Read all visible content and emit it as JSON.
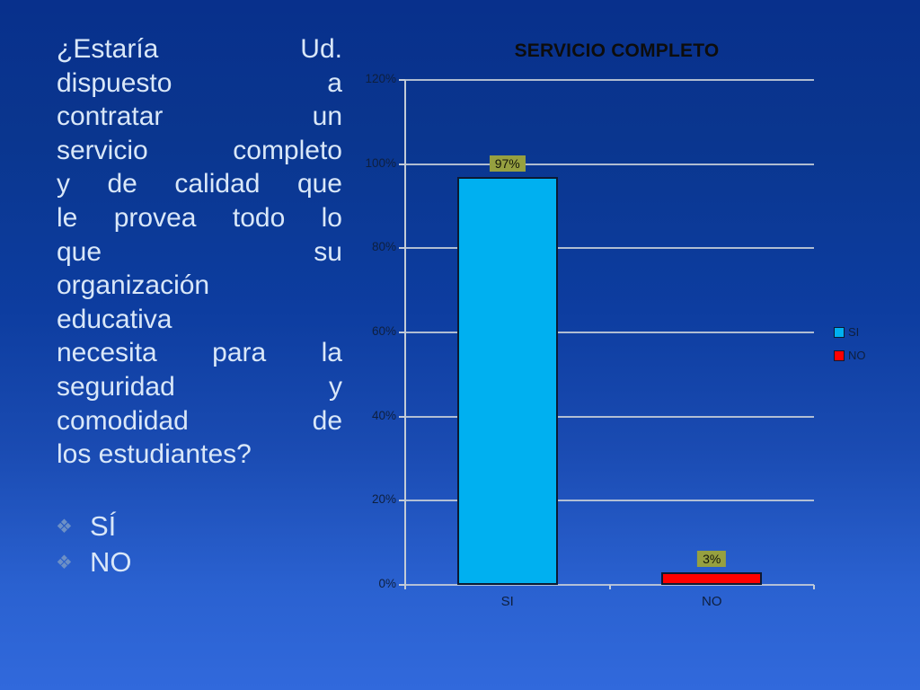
{
  "slide": {
    "question": {
      "text": "¿Estaría Ud. dispuesto a contratar un servicio completo y de calidad que le provea todo lo que su organización educativa necesita para la seguridad y comodidad de los estudiantes?",
      "lines": [
        "¿Estaría Ud.",
        "dispuesto a",
        "contratar un",
        "servicio completo",
        "y de calidad que",
        "le provea todo lo",
        "que su",
        "organización",
        "educativa",
        "necesita para la",
        "seguridad y",
        "comodidad de",
        "los estudiantes?"
      ]
    },
    "options": [
      {
        "bullet": "❖",
        "label": "SÍ"
      },
      {
        "bullet": "❖",
        "label": "NO"
      }
    ],
    "text_color": "#d9e7f8",
    "background": {
      "gradient_top": "#08308c",
      "gradient_bottom": "#3169dc"
    }
  },
  "chart_data": {
    "type": "bar",
    "title": "SERVICIO COMPLETO",
    "categories": [
      "SI",
      "NO"
    ],
    "values": [
      97,
      3
    ],
    "value_labels": [
      "97%",
      "3%"
    ],
    "series": [
      {
        "name": "SI",
        "value": 97,
        "color": "#00b0f0"
      },
      {
        "name": "NO",
        "value": 3,
        "color": "#ff0000"
      }
    ],
    "xlabel": "",
    "ylabel": "",
    "ylim": [
      0,
      120
    ],
    "ytick_step": 20,
    "ytick_labels": [
      "0%",
      "20%",
      "40%",
      "60%",
      "80%",
      "100%",
      "120%"
    ],
    "grid": true,
    "legend_position": "right",
    "legend": [
      {
        "label": "SI",
        "color": "#00b0f0"
      },
      {
        "label": "NO",
        "color": "#ff0000"
      }
    ],
    "colors": {
      "title": "#0d0d0d",
      "axis_text": "#0e1f3e",
      "gridline": "#c2cbd7",
      "bar_border": "#0b1a33",
      "value_label_bg": "#96a040",
      "value_label_text": "#14150a"
    }
  }
}
